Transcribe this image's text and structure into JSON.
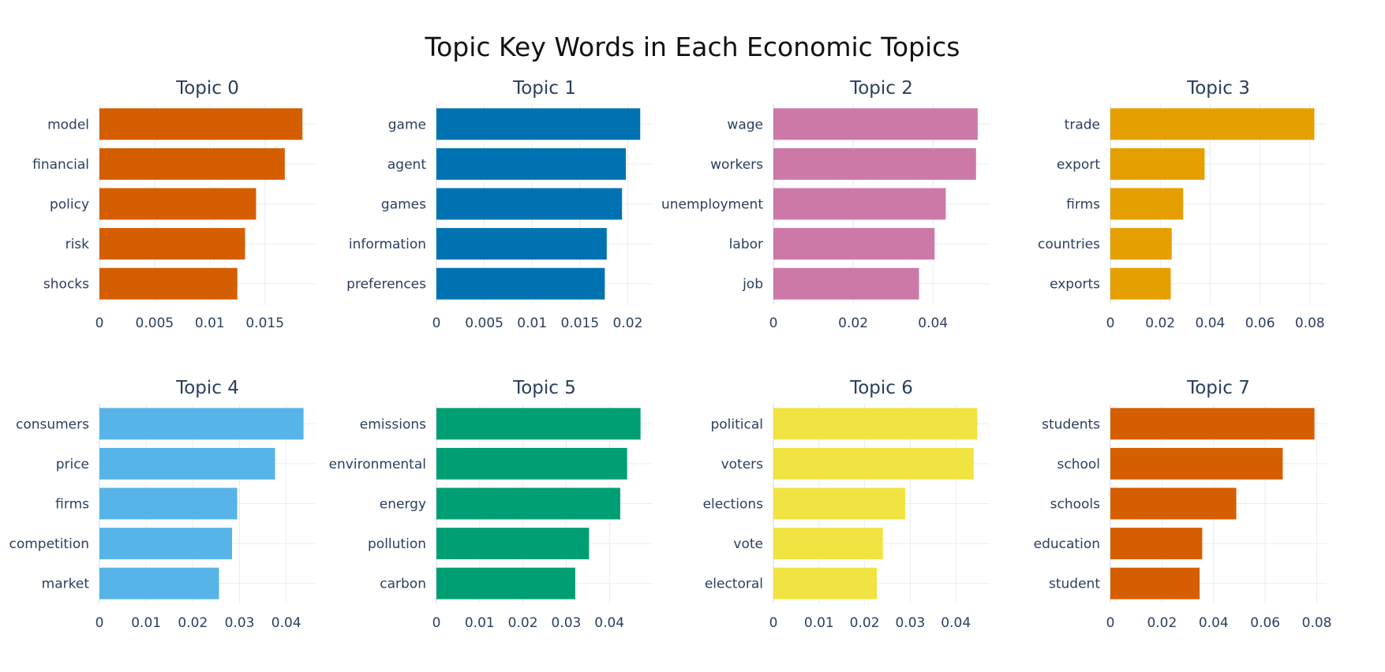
{
  "title": "Topic Key Words in Each Economic Topics",
  "chart_data": [
    {
      "type": "bar",
      "orientation": "horizontal",
      "title": "Topic 0",
      "color": "#D55E00",
      "categories": [
        "model",
        "financial",
        "policy",
        "risk",
        "shocks"
      ],
      "values": [
        0.0184,
        0.0168,
        0.0142,
        0.0132,
        0.0125
      ],
      "xlim": [
        0,
        0.0196
      ],
      "xticks": [
        0,
        0.005,
        0.01,
        0.015
      ],
      "xtick_labels": [
        "0",
        "0.005",
        "0.01",
        "0.015"
      ]
    },
    {
      "type": "bar",
      "orientation": "horizontal",
      "title": "Topic 1",
      "color": "#0072B2",
      "categories": [
        "game",
        "agent",
        "games",
        "information",
        "preferences"
      ],
      "values": [
        0.0213,
        0.0198,
        0.0194,
        0.0178,
        0.0176
      ],
      "xlim": [
        0,
        0.0226
      ],
      "xticks": [
        0,
        0.005,
        0.01,
        0.015,
        0.02
      ],
      "xtick_labels": [
        "0",
        "0.005",
        "0.01",
        "0.015",
        "0.02"
      ]
    },
    {
      "type": "bar",
      "orientation": "horizontal",
      "title": "Topic 2",
      "color": "#CC79A7",
      "categories": [
        "wage",
        "workers",
        "unemployment",
        "labor",
        "job"
      ],
      "values": [
        0.0512,
        0.0508,
        0.0432,
        0.0404,
        0.0365
      ],
      "xlim": [
        0,
        0.0542
      ],
      "xticks": [
        0,
        0.02,
        0.04
      ],
      "xtick_labels": [
        "0",
        "0.02",
        "0.04"
      ]
    },
    {
      "type": "bar",
      "orientation": "horizontal",
      "title": "Topic 3",
      "color": "#E69F00",
      "categories": [
        "trade",
        "export",
        "firms",
        "countries",
        "exports"
      ],
      "values": [
        0.0818,
        0.0378,
        0.0292,
        0.0246,
        0.0242
      ],
      "xlim": [
        0,
        0.0867
      ],
      "xticks": [
        0,
        0.02,
        0.04,
        0.06,
        0.08
      ],
      "xtick_labels": [
        "0",
        "0.02",
        "0.04",
        "0.06",
        "0.08"
      ]
    },
    {
      "type": "bar",
      "orientation": "horizontal",
      "title": "Topic 4",
      "color": "#56B4E9",
      "categories": [
        "consumers",
        "price",
        "firms",
        "competition",
        "market"
      ],
      "values": [
        0.0437,
        0.0376,
        0.0295,
        0.0284,
        0.0256
      ],
      "xlim": [
        0,
        0.0463
      ],
      "xticks": [
        0,
        0.01,
        0.02,
        0.03,
        0.04
      ],
      "xtick_labels": [
        "0",
        "0.01",
        "0.02",
        "0.03",
        "0.04"
      ]
    },
    {
      "type": "bar",
      "orientation": "horizontal",
      "title": "Topic 5",
      "color": "#009E73",
      "categories": [
        "emissions",
        "environmental",
        "energy",
        "pollution",
        "carbon"
      ],
      "values": [
        0.0472,
        0.0441,
        0.0425,
        0.0353,
        0.0321
      ],
      "xlim": [
        0,
        0.05
      ],
      "xticks": [
        0,
        0.01,
        0.02,
        0.03,
        0.04
      ],
      "xtick_labels": [
        "0",
        "0.01",
        "0.02",
        "0.03",
        "0.04"
      ]
    },
    {
      "type": "bar",
      "orientation": "horizontal",
      "title": "Topic 6",
      "color": "#F0E442",
      "categories": [
        "political",
        "voters",
        "elections",
        "vote",
        "electoral"
      ],
      "values": [
        0.0447,
        0.0439,
        0.0289,
        0.024,
        0.0227
      ],
      "xlim": [
        0,
        0.0474
      ],
      "xticks": [
        0,
        0.01,
        0.02,
        0.03,
        0.04
      ],
      "xtick_labels": [
        "0",
        "0.01",
        "0.02",
        "0.03",
        "0.04"
      ]
    },
    {
      "type": "bar",
      "orientation": "horizontal",
      "title": "Topic 7",
      "color": "#D55E00",
      "categories": [
        "students",
        "school",
        "schools",
        "education",
        "student"
      ],
      "values": [
        0.0791,
        0.0668,
        0.0488,
        0.0356,
        0.0346
      ],
      "xlim": [
        0,
        0.0838
      ],
      "xticks": [
        0,
        0.02,
        0.04,
        0.06,
        0.08
      ],
      "xtick_labels": [
        "0",
        "0.02",
        "0.04",
        "0.06",
        "0.08"
      ]
    }
  ]
}
